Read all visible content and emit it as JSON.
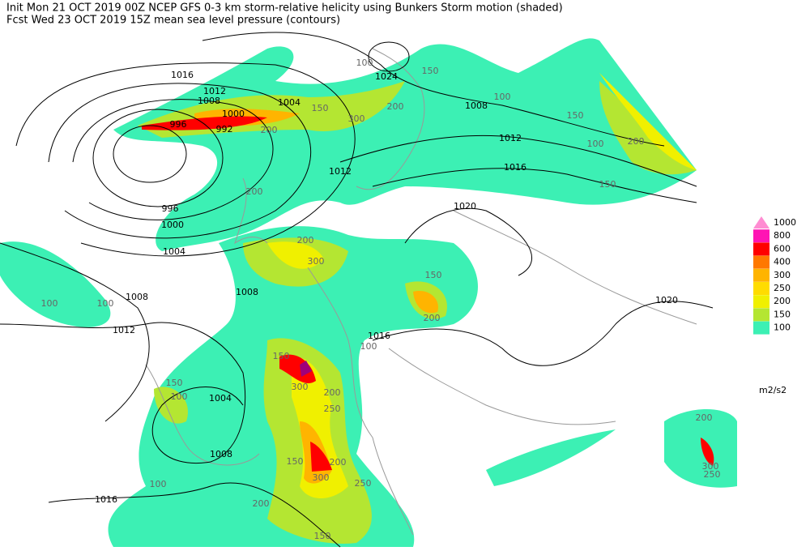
{
  "header": {
    "line1": "Init  Mon 21 OCT 2019 00Z  NCEP GFS 0-3 km storm-relative helicity using Bunkers Storm motion (shaded)",
    "line2": "Fcst Wed 23 OCT 2019 15Z  mean sea level pressure (contours)"
  },
  "legend": {
    "items": [
      {
        "label": "1000",
        "color": "#ff8cd2"
      },
      {
        "label": "800",
        "color": "#ff14b4"
      },
      {
        "label": "600",
        "color": "#ff0000"
      },
      {
        "label": "400",
        "color": "#ff7800"
      },
      {
        "label": "300",
        "color": "#ffb400"
      },
      {
        "label": "250",
        "color": "#ffdc00"
      },
      {
        "label": "200",
        "color": "#f0f000"
      },
      {
        "label": "150",
        "color": "#b4e632"
      },
      {
        "label": "100",
        "color": "#3cf0b4"
      }
    ],
    "unit": "m2/s2"
  },
  "contour_labels": [
    "1016",
    "1012",
    "1008",
    "1004",
    "1000",
    "996",
    "992",
    "1024",
    "1008",
    "1012",
    "1016",
    "1020",
    "1012",
    "996",
    "1000",
    "1004",
    "1008",
    "1012",
    "1008",
    "1016",
    "1004",
    "1008",
    "1016",
    "1020"
  ],
  "shading_labels": [
    "100",
    "150",
    "100",
    "150",
    "100",
    "200",
    "150",
    "200",
    "300",
    "200",
    "150",
    "200",
    "200",
    "300",
    "150",
    "200",
    "100",
    "150",
    "200",
    "250",
    "300",
    "200",
    "300",
    "150",
    "250",
    "200",
    "150",
    "100",
    "100",
    "200",
    "250",
    "300",
    "100",
    "150",
    "100"
  ]
}
